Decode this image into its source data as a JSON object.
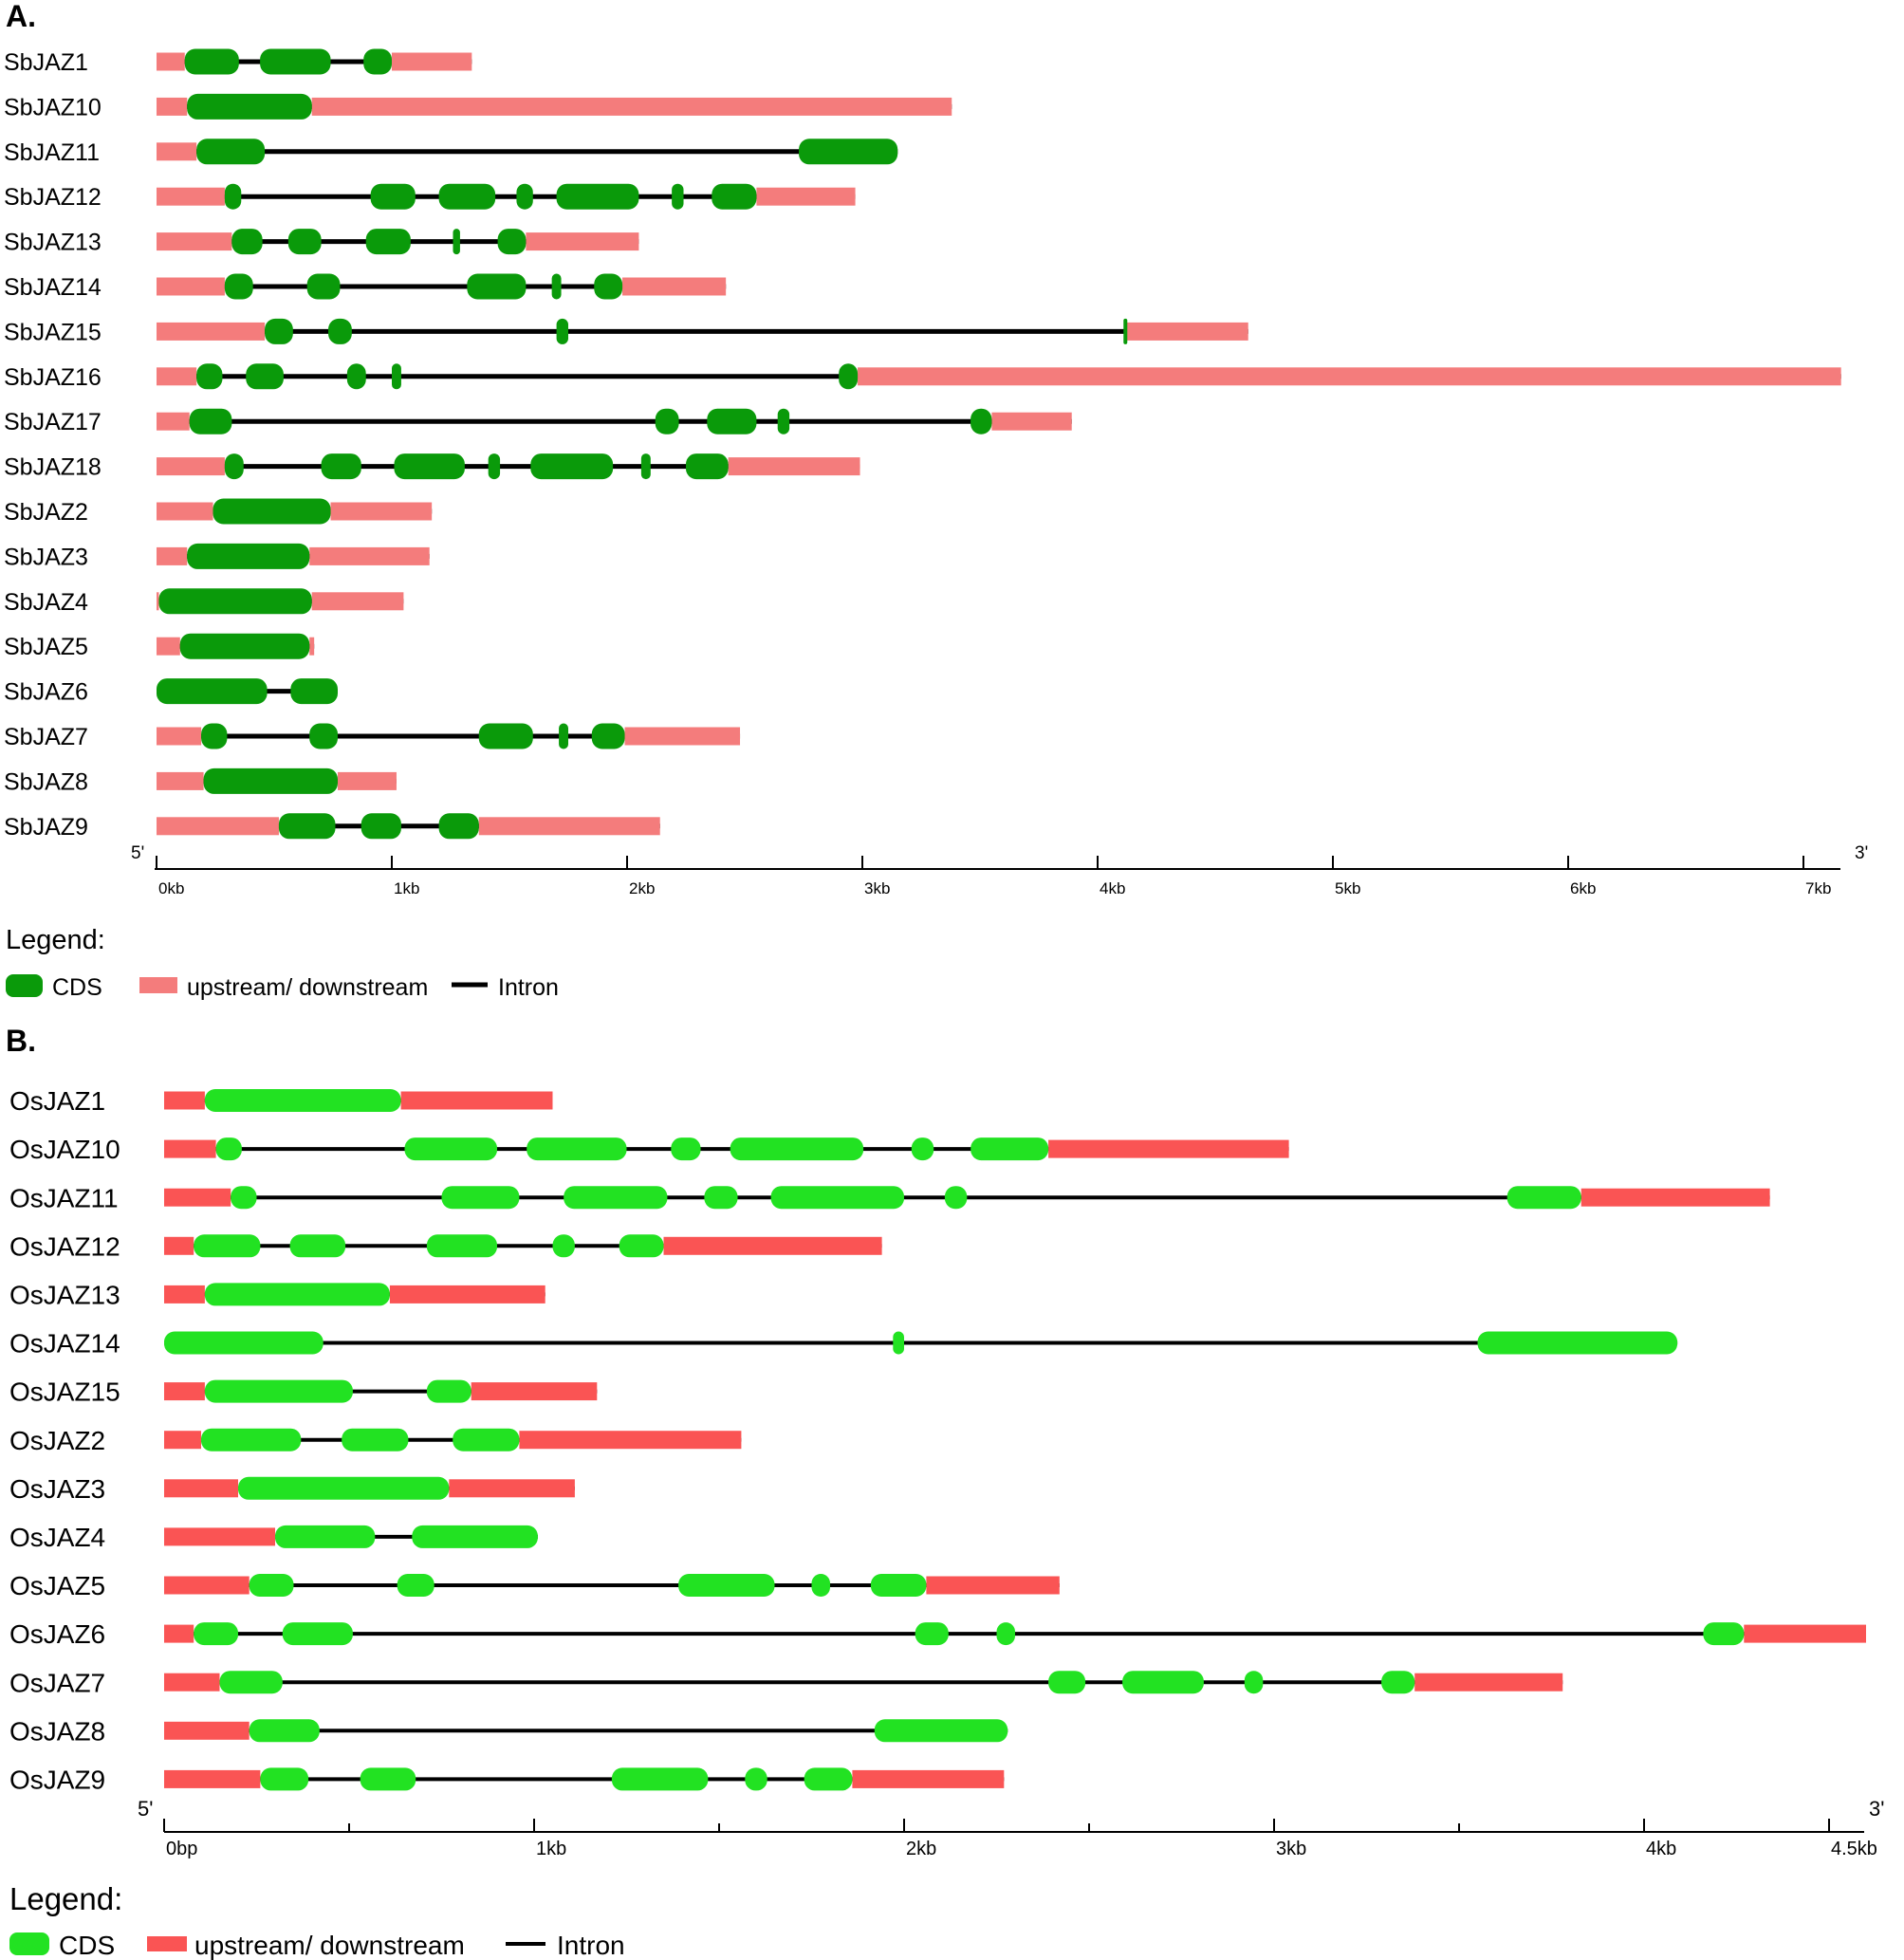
{
  "colors": {
    "panel_a": {
      "cds": "#0a9a0a",
      "utr": "#f47c7c",
      "intron": "#000000"
    },
    "panel_b": {
      "cds": "#22e222",
      "utr": "#fa5454",
      "intron": "#000000"
    }
  },
  "panels": [
    {
      "id": "a",
      "title": "A.",
      "axis": {
        "start_label": "5'",
        "end_label": "3'",
        "unit": "kb",
        "max": 7.2,
        "ticks": [
          {
            "value": 0,
            "label": "0kb"
          },
          {
            "value": 1,
            "label": "1kb"
          },
          {
            "value": 2,
            "label": "2kb"
          },
          {
            "value": 3,
            "label": "3kb"
          },
          {
            "value": 4,
            "label": "4kb"
          },
          {
            "value": 5,
            "label": "5kb"
          },
          {
            "value": 6,
            "label": "6kb"
          },
          {
            "value": 7,
            "label": "7kb"
          }
        ],
        "minor_ticks": []
      },
      "legend": {
        "title": "Legend:",
        "cds": "CDS",
        "utr": "upstream/ downstream",
        "intron": "Intron"
      },
      "genes": [
        {
          "name": "SbJAZ1",
          "length": 1.34,
          "utr": [
            [
              0,
              0.12
            ],
            [
              1.0,
              1.34
            ]
          ],
          "cds": [
            [
              0.12,
              0.35
            ],
            [
              0.44,
              0.74
            ],
            [
              0.88,
              1.0
            ]
          ]
        },
        {
          "name": "SbJAZ10",
          "length": 3.38,
          "utr": [
            [
              0,
              0.13
            ],
            [
              0.66,
              3.38
            ]
          ],
          "cds": [
            [
              0.13,
              0.66
            ]
          ]
        },
        {
          "name": "SbJAZ11",
          "length": 3.15,
          "utr": [
            [
              0,
              0.17
            ]
          ],
          "cds": [
            [
              0.17,
              0.46
            ],
            [
              2.73,
              3.15
            ]
          ]
        },
        {
          "name": "SbJAZ12",
          "length": 2.97,
          "utr": [
            [
              0,
              0.29
            ],
            [
              2.55,
              2.97
            ]
          ],
          "cds": [
            [
              0.29,
              0.36
            ],
            [
              0.91,
              1.1
            ],
            [
              1.2,
              1.44
            ],
            [
              1.53,
              1.6
            ],
            [
              1.7,
              2.05
            ],
            [
              2.19,
              2.24
            ],
            [
              2.36,
              2.55
            ]
          ]
        },
        {
          "name": "SbJAZ13",
          "length": 2.05,
          "utr": [
            [
              0,
              0.32
            ],
            [
              1.57,
              2.05
            ]
          ],
          "cds": [
            [
              0.32,
              0.45
            ],
            [
              0.56,
              0.7
            ],
            [
              0.89,
              1.08
            ],
            [
              1.26,
              1.29
            ],
            [
              1.45,
              1.57
            ]
          ]
        },
        {
          "name": "SbJAZ14",
          "length": 2.42,
          "utr": [
            [
              0,
              0.29
            ],
            [
              1.98,
              2.42
            ]
          ],
          "cds": [
            [
              0.29,
              0.41
            ],
            [
              0.64,
              0.78
            ],
            [
              1.32,
              1.57
            ],
            [
              1.68,
              1.72
            ],
            [
              1.86,
              1.98
            ]
          ]
        },
        {
          "name": "SbJAZ15",
          "length": 4.64,
          "utr": [
            [
              0,
              0.46
            ],
            [
              4.12,
              4.64
            ]
          ],
          "cds": [
            [
              0.46,
              0.58
            ],
            [
              0.73,
              0.83
            ],
            [
              1.7,
              1.75
            ],
            [
              4.11,
              4.12
            ]
          ]
        },
        {
          "name": "SbJAZ16",
          "length": 7.16,
          "utr": [
            [
              0,
              0.17
            ],
            [
              2.98,
              7.16
            ]
          ],
          "cds": [
            [
              0.17,
              0.28
            ],
            [
              0.38,
              0.54
            ],
            [
              0.81,
              0.89
            ],
            [
              1.0,
              1.04
            ],
            [
              2.9,
              2.98
            ]
          ]
        },
        {
          "name": "SbJAZ17",
          "length": 3.89,
          "utr": [
            [
              0,
              0.14
            ],
            [
              3.55,
              3.89
            ]
          ],
          "cds": [
            [
              0.14,
              0.32
            ],
            [
              2.12,
              2.22
            ],
            [
              2.34,
              2.55
            ],
            [
              2.64,
              2.69
            ],
            [
              3.46,
              3.55
            ]
          ]
        },
        {
          "name": "SbJAZ18",
          "length": 2.99,
          "utr": [
            [
              0,
              0.29
            ],
            [
              2.43,
              2.99
            ]
          ],
          "cds": [
            [
              0.29,
              0.37
            ],
            [
              0.7,
              0.87
            ],
            [
              1.01,
              1.31
            ],
            [
              1.41,
              1.46
            ],
            [
              1.59,
              1.94
            ],
            [
              2.06,
              2.1
            ],
            [
              2.25,
              2.43
            ]
          ]
        },
        {
          "name": "SbJAZ2",
          "length": 1.17,
          "utr": [
            [
              0,
              0.24
            ],
            [
              0.74,
              1.17
            ]
          ],
          "cds": [
            [
              0.24,
              0.74
            ]
          ]
        },
        {
          "name": "SbJAZ3",
          "length": 1.16,
          "utr": [
            [
              0,
              0.13
            ],
            [
              0.65,
              1.16
            ]
          ],
          "cds": [
            [
              0.13,
              0.65
            ]
          ]
        },
        {
          "name": "SbJAZ4",
          "length": 1.05,
          "utr": [
            [
              0,
              0.01
            ],
            [
              0.66,
              1.05
            ]
          ],
          "cds": [
            [
              0.01,
              0.66
            ]
          ]
        },
        {
          "name": "SbJAZ5",
          "length": 0.67,
          "utr": [
            [
              0,
              0.1
            ],
            [
              0.65,
              0.67
            ]
          ],
          "cds": [
            [
              0.1,
              0.65
            ]
          ]
        },
        {
          "name": "SbJAZ6",
          "length": 0.77,
          "utr": [],
          "cds": [
            [
              0.0,
              0.47
            ],
            [
              0.57,
              0.77
            ]
          ]
        },
        {
          "name": "SbJAZ7",
          "length": 2.48,
          "utr": [
            [
              0,
              0.19
            ],
            [
              1.99,
              2.48
            ]
          ],
          "cds": [
            [
              0.19,
              0.3
            ],
            [
              0.65,
              0.77
            ],
            [
              1.37,
              1.6
            ],
            [
              1.71,
              1.75
            ],
            [
              1.85,
              1.99
            ]
          ]
        },
        {
          "name": "SbJAZ8",
          "length": 1.02,
          "utr": [
            [
              0,
              0.2
            ],
            [
              0.77,
              1.02
            ]
          ],
          "cds": [
            [
              0.2,
              0.77
            ]
          ]
        },
        {
          "name": "SbJAZ9",
          "length": 2.14,
          "utr": [
            [
              0,
              0.52
            ],
            [
              1.37,
              2.14
            ]
          ],
          "cds": [
            [
              0.52,
              0.76
            ],
            [
              0.87,
              1.04
            ],
            [
              1.2,
              1.37
            ]
          ]
        }
      ]
    },
    {
      "id": "b",
      "title": "B.",
      "axis": {
        "start_label": "5'",
        "end_label": "3'",
        "unit": "bp",
        "max": 4.6,
        "ticks": [
          {
            "value": 0,
            "label": "0bp"
          },
          {
            "value": 1,
            "label": "1kb"
          },
          {
            "value": 2,
            "label": "2kb"
          },
          {
            "value": 3,
            "label": "3kb"
          },
          {
            "value": 4,
            "label": "4kb"
          },
          {
            "value": 4.5,
            "label": "4.5kb"
          }
        ],
        "minor_ticks": [
          0.5,
          1.5,
          2.5,
          3.5
        ]
      },
      "legend": {
        "title": "Legend:",
        "cds": "CDS",
        "utr": "upstream/ downstream",
        "intron": "Intron"
      },
      "genes": [
        {
          "name": "OsJAZ1",
          "length": 1.05,
          "utr": [
            [
              0,
              0.11
            ],
            [
              0.64,
              1.05
            ]
          ],
          "cds": [
            [
              0.11,
              0.64
            ]
          ]
        },
        {
          "name": "OsJAZ10",
          "length": 3.04,
          "utr": [
            [
              0,
              0.14
            ],
            [
              2.39,
              3.04
            ]
          ],
          "cds": [
            [
              0.14,
              0.21
            ],
            [
              0.65,
              0.9
            ],
            [
              0.98,
              1.25
            ],
            [
              1.37,
              1.45
            ],
            [
              1.53,
              1.89
            ],
            [
              2.02,
              2.08
            ],
            [
              2.18,
              2.39
            ]
          ]
        },
        {
          "name": "OsJAZ11",
          "length": 4.34,
          "utr": [
            [
              0,
              0.18
            ],
            [
              3.83,
              4.34
            ]
          ],
          "cds": [
            [
              0.18,
              0.25
            ],
            [
              0.75,
              0.96
            ],
            [
              1.08,
              1.36
            ],
            [
              1.46,
              1.55
            ],
            [
              1.64,
              2.0
            ],
            [
              2.11,
              2.17
            ],
            [
              3.63,
              3.83
            ]
          ]
        },
        {
          "name": "OsJAZ12",
          "length": 1.94,
          "utr": [
            [
              0,
              0.08
            ],
            [
              1.35,
              1.94
            ]
          ],
          "cds": [
            [
              0.08,
              0.26
            ],
            [
              0.34,
              0.49
            ],
            [
              0.71,
              0.9
            ],
            [
              1.05,
              1.11
            ],
            [
              1.23,
              1.35
            ]
          ]
        },
        {
          "name": "OsJAZ13",
          "length": 1.03,
          "utr": [
            [
              0,
              0.11
            ],
            [
              0.61,
              1.03
            ]
          ],
          "cds": [
            [
              0.11,
              0.61
            ]
          ]
        },
        {
          "name": "OsJAZ14",
          "length": 4.09,
          "utr": [],
          "cds": [
            [
              0.0,
              0.43
            ],
            [
              1.97,
              2.0
            ],
            [
              3.55,
              4.09
            ]
          ]
        },
        {
          "name": "OsJAZ15",
          "length": 1.17,
          "utr": [
            [
              0,
              0.11
            ],
            [
              0.83,
              1.17
            ]
          ],
          "cds": [
            [
              0.11,
              0.51
            ],
            [
              0.71,
              0.83
            ]
          ]
        },
        {
          "name": "OsJAZ2",
          "length": 1.56,
          "utr": [
            [
              0,
              0.1
            ],
            [
              0.96,
              1.56
            ]
          ],
          "cds": [
            [
              0.1,
              0.37
            ],
            [
              0.48,
              0.66
            ],
            [
              0.78,
              0.96
            ]
          ]
        },
        {
          "name": "OsJAZ3",
          "length": 1.11,
          "utr": [
            [
              0,
              0.2
            ],
            [
              0.77,
              1.11
            ]
          ],
          "cds": [
            [
              0.2,
              0.77
            ]
          ]
        },
        {
          "name": "OsJAZ4",
          "length": 1.01,
          "utr": [
            [
              0,
              0.3
            ]
          ],
          "cds": [
            [
              0.3,
              0.57
            ],
            [
              0.67,
              1.01
            ]
          ]
        },
        {
          "name": "OsJAZ5",
          "length": 2.42,
          "utr": [
            [
              0,
              0.23
            ],
            [
              2.06,
              2.42
            ]
          ],
          "cds": [
            [
              0.23,
              0.35
            ],
            [
              0.63,
              0.73
            ],
            [
              1.39,
              1.65
            ],
            [
              1.75,
              1.8
            ],
            [
              1.91,
              2.06
            ]
          ]
        },
        {
          "name": "OsJAZ6",
          "length": 4.6,
          "utr": [
            [
              0,
              0.08
            ],
            [
              4.27,
              4.6
            ]
          ],
          "cds": [
            [
              0.08,
              0.2
            ],
            [
              0.32,
              0.51
            ],
            [
              2.03,
              2.12
            ],
            [
              2.25,
              2.3
            ],
            [
              4.16,
              4.27
            ]
          ]
        },
        {
          "name": "OsJAZ7",
          "length": 3.78,
          "utr": [
            [
              0,
              0.15
            ],
            [
              3.38,
              3.78
            ]
          ],
          "cds": [
            [
              0.15,
              0.32
            ],
            [
              2.39,
              2.49
            ],
            [
              2.59,
              2.81
            ],
            [
              2.92,
              2.97
            ],
            [
              3.29,
              3.38
            ]
          ]
        },
        {
          "name": "OsJAZ8",
          "length": 2.28,
          "utr": [
            [
              0,
              0.23
            ]
          ],
          "cds": [
            [
              0.23,
              0.42
            ],
            [
              1.92,
              2.28
            ]
          ]
        },
        {
          "name": "OsJAZ9",
          "length": 2.27,
          "utr": [
            [
              0,
              0.26
            ],
            [
              1.86,
              2.27
            ]
          ],
          "cds": [
            [
              0.26,
              0.39
            ],
            [
              0.53,
              0.68
            ],
            [
              1.21,
              1.47
            ],
            [
              1.57,
              1.63
            ],
            [
              1.73,
              1.86
            ]
          ]
        }
      ]
    }
  ]
}
